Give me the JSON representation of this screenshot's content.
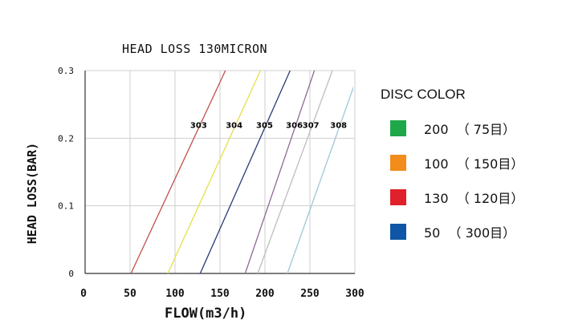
{
  "chart_data": {
    "type": "line",
    "title": "HEAD LOSS 130MICRON",
    "xlabel": "FLOW(m3/h)",
    "ylabel": "HEAD LOSS(BAR)",
    "xlim": [
      0,
      300
    ],
    "ylim": [
      0,
      0.3
    ],
    "x_ticks": [
      "0",
      "50",
      "100",
      "150",
      "200",
      "250",
      "300"
    ],
    "y_ticks": [
      "0",
      "0.1",
      "0.2",
      "0.3"
    ],
    "grid": true,
    "series": [
      {
        "name": "303",
        "x": [
          51,
          156
        ],
        "y": [
          0,
          0.3
        ],
        "color": "#c0504d"
      },
      {
        "name": "304",
        "x": [
          92,
          195
        ],
        "y": [
          0,
          0.3
        ],
        "color": "#e6e04a"
      },
      {
        "name": "305",
        "x": [
          128,
          228
        ],
        "y": [
          0,
          0.3
        ],
        "color": "#2a3a78"
      },
      {
        "name": "306",
        "x": [
          178,
          255
        ],
        "y": [
          0,
          0.3
        ],
        "color": "#8f6a95"
      },
      {
        "name": "307",
        "x": [
          192,
          275
        ],
        "y": [
          0,
          0.3
        ],
        "color": "#bdbdbd"
      },
      {
        "name": "308",
        "x": [
          225,
          305
        ],
        "y": [
          0,
          0.3
        ],
        "color": "#9ec8d6"
      }
    ]
  },
  "legend": {
    "title": "DISC COLOR",
    "items": [
      {
        "label": "200  （ 75目）",
        "color": "#1ea84a"
      },
      {
        "label": "100  （ 150目）",
        "color": "#f28c1b"
      },
      {
        "label": "130  （ 120目）",
        "color": "#e0202a"
      },
      {
        "label": "50  （ 300目）",
        "color": "#0f56a8"
      }
    ]
  }
}
